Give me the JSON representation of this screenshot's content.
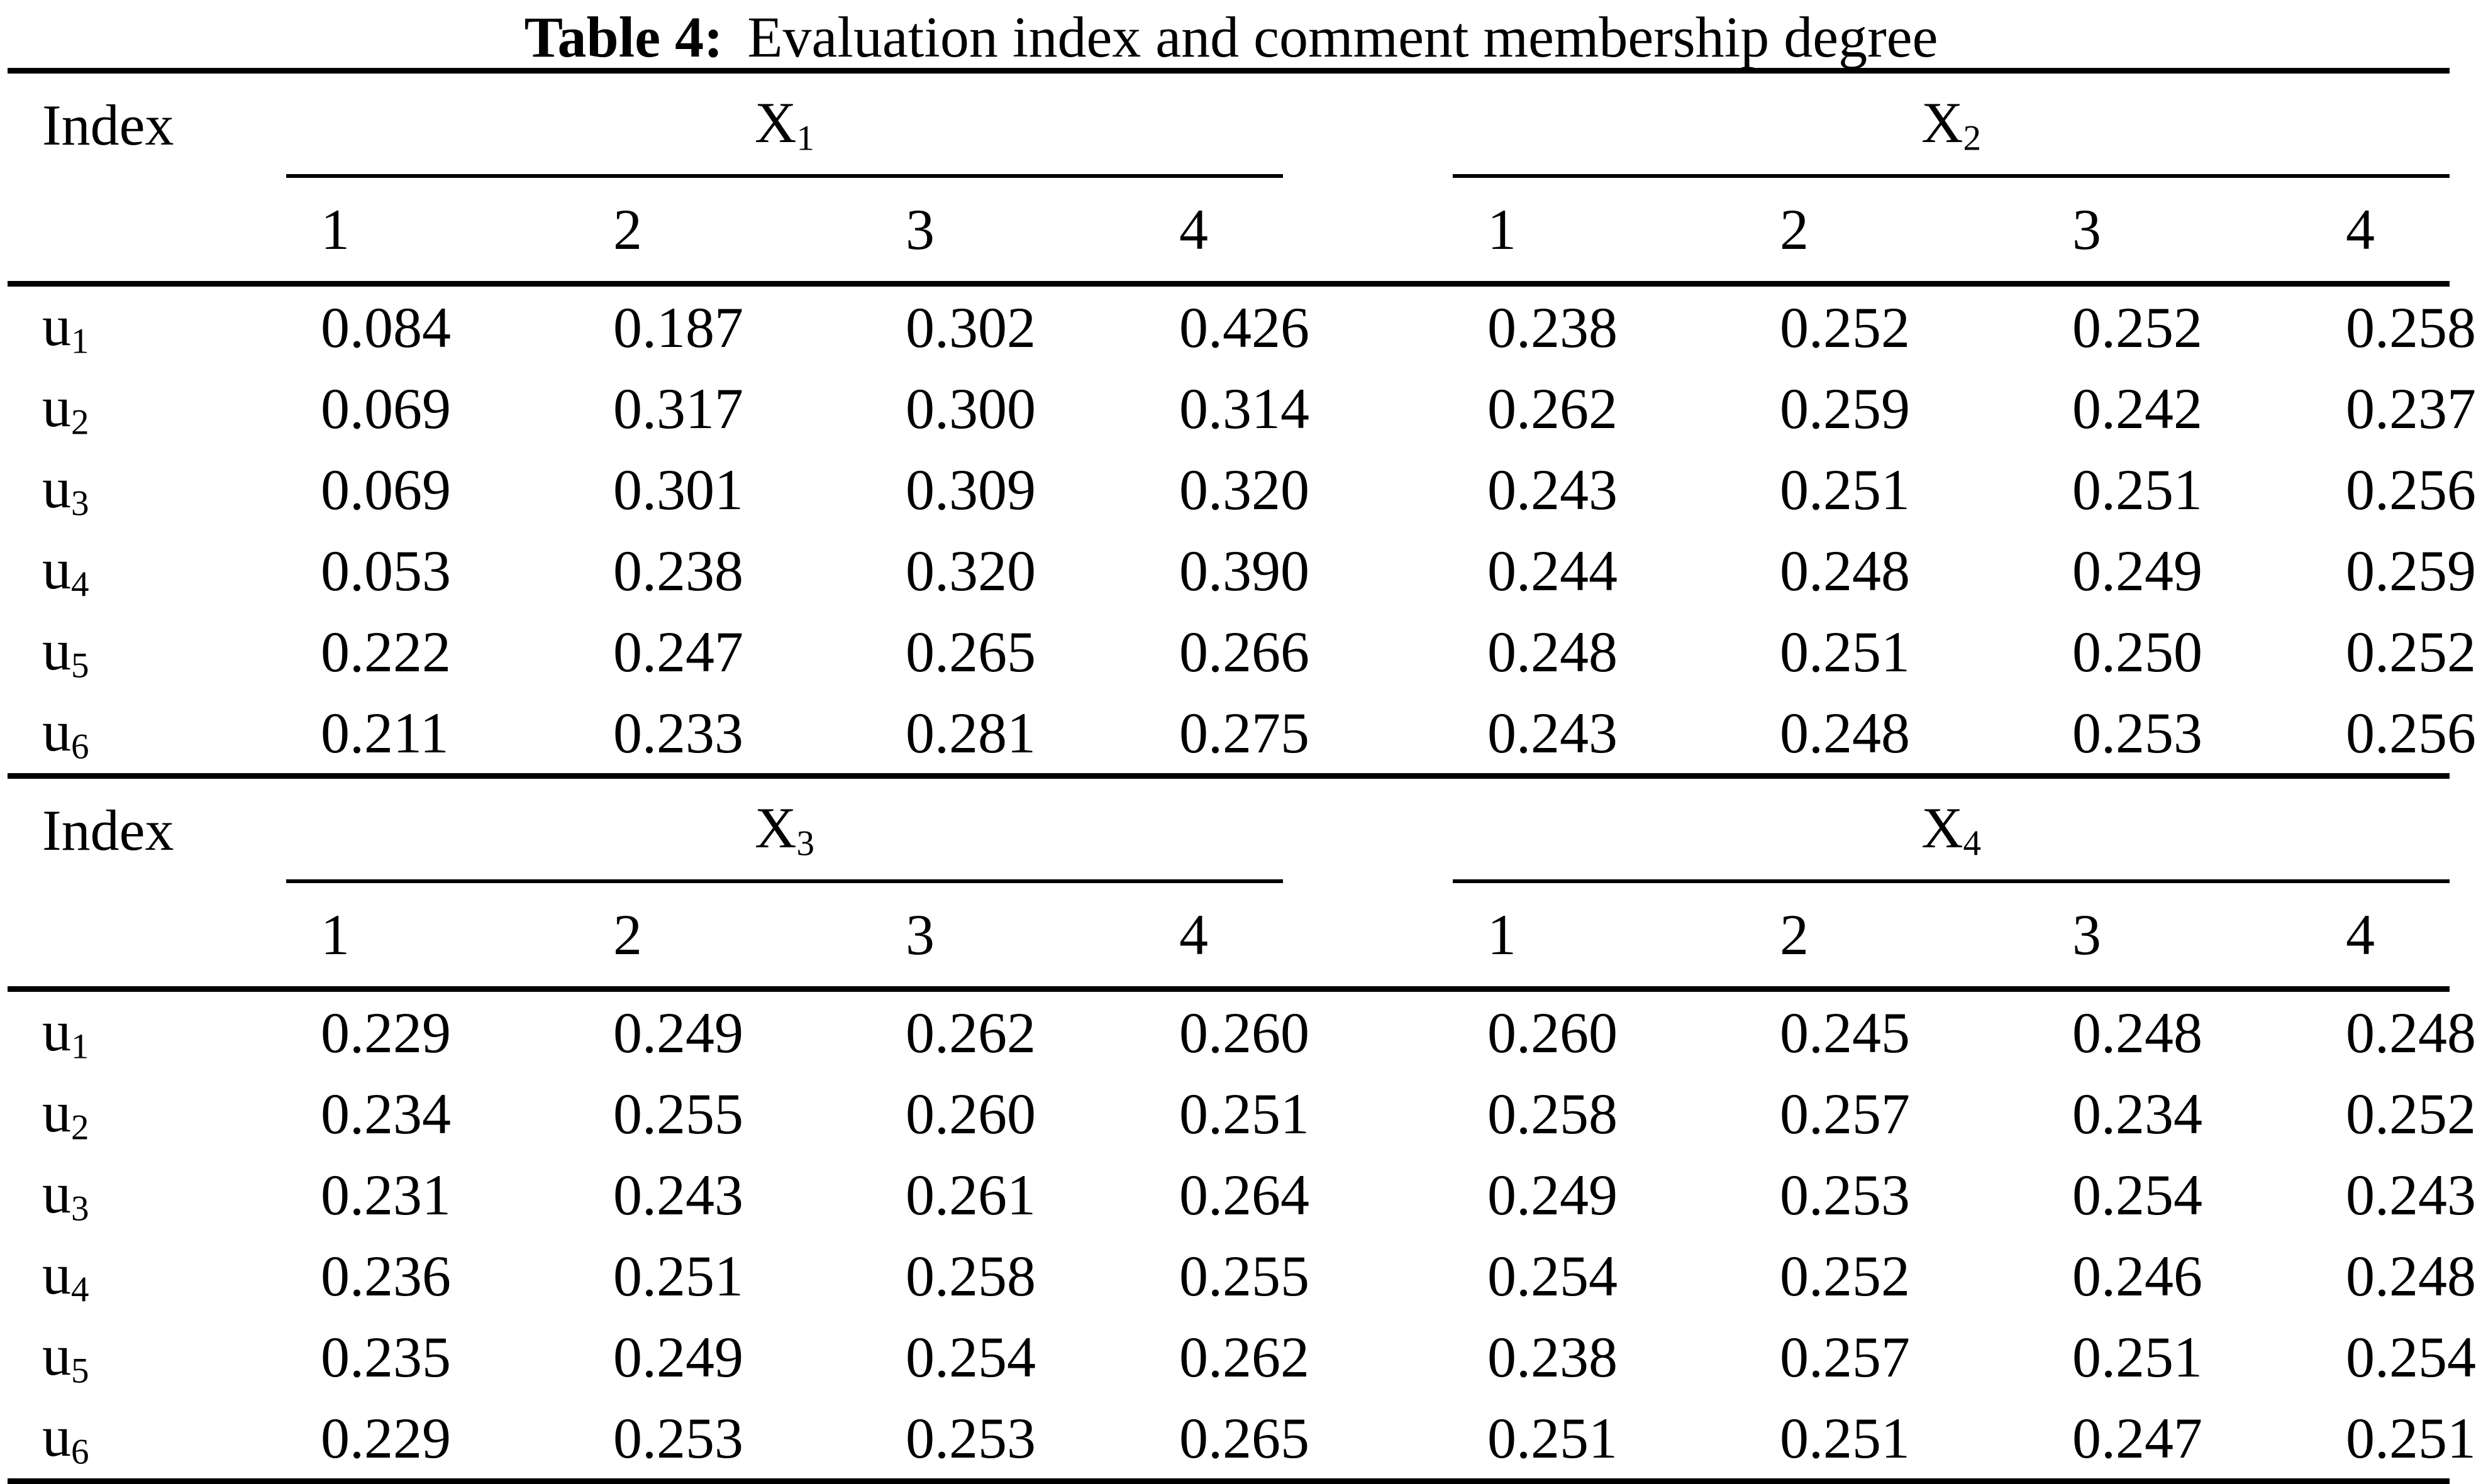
{
  "caption": {
    "label": "Table 4:",
    "text": "Evaluation index and comment membership degree"
  },
  "colors": {
    "background": "#ffffff",
    "text": "#000000",
    "rule": "#000000"
  },
  "sections": [
    {
      "index_label": "Index",
      "groups": [
        {
          "name": "X",
          "sub": "1",
          "cols": [
            "1",
            "2",
            "3",
            "4"
          ]
        },
        {
          "name": "X",
          "sub": "2",
          "cols": [
            "1",
            "2",
            "3",
            "4"
          ]
        }
      ],
      "rows": [
        {
          "label": "u",
          "sub": "1",
          "values": [
            "0.084",
            "0.187",
            "0.302",
            "0.426",
            "0.238",
            "0.252",
            "0.252",
            "0.258"
          ]
        },
        {
          "label": "u",
          "sub": "2",
          "values": [
            "0.069",
            "0.317",
            "0.300",
            "0.314",
            "0.262",
            "0.259",
            "0.242",
            "0.237"
          ]
        },
        {
          "label": "u",
          "sub": "3",
          "values": [
            "0.069",
            "0.301",
            "0.309",
            "0.320",
            "0.243",
            "0.251",
            "0.251",
            "0.256"
          ]
        },
        {
          "label": "u",
          "sub": "4",
          "values": [
            "0.053",
            "0.238",
            "0.320",
            "0.390",
            "0.244",
            "0.248",
            "0.249",
            "0.259"
          ]
        },
        {
          "label": "u",
          "sub": "5",
          "values": [
            "0.222",
            "0.247",
            "0.265",
            "0.266",
            "0.248",
            "0.251",
            "0.250",
            "0.252"
          ]
        },
        {
          "label": "u",
          "sub": "6",
          "values": [
            "0.211",
            "0.233",
            "0.281",
            "0.275",
            "0.243",
            "0.248",
            "0.253",
            "0.256"
          ]
        }
      ]
    },
    {
      "index_label": "Index",
      "groups": [
        {
          "name": "X",
          "sub": "3",
          "cols": [
            "1",
            "2",
            "3",
            "4"
          ]
        },
        {
          "name": "X",
          "sub": "4",
          "cols": [
            "1",
            "2",
            "3",
            "4"
          ]
        }
      ],
      "rows": [
        {
          "label": "u",
          "sub": "1",
          "values": [
            "0.229",
            "0.249",
            "0.262",
            "0.260",
            "0.260",
            "0.245",
            "0.248",
            "0.248"
          ]
        },
        {
          "label": "u",
          "sub": "2",
          "values": [
            "0.234",
            "0.255",
            "0.260",
            "0.251",
            "0.258",
            "0.257",
            "0.234",
            "0.252"
          ]
        },
        {
          "label": "u",
          "sub": "3",
          "values": [
            "0.231",
            "0.243",
            "0.261",
            "0.264",
            "0.249",
            "0.253",
            "0.254",
            "0.243"
          ]
        },
        {
          "label": "u",
          "sub": "4",
          "values": [
            "0.236",
            "0.251",
            "0.258",
            "0.255",
            "0.254",
            "0.252",
            "0.246",
            "0.248"
          ]
        },
        {
          "label": "u",
          "sub": "5",
          "values": [
            "0.235",
            "0.249",
            "0.254",
            "0.262",
            "0.238",
            "0.257",
            "0.251",
            "0.254"
          ]
        },
        {
          "label": "u",
          "sub": "6",
          "values": [
            "0.229",
            "0.253",
            "0.253",
            "0.265",
            "0.251",
            "0.251",
            "0.247",
            "0.251"
          ]
        }
      ]
    }
  ]
}
